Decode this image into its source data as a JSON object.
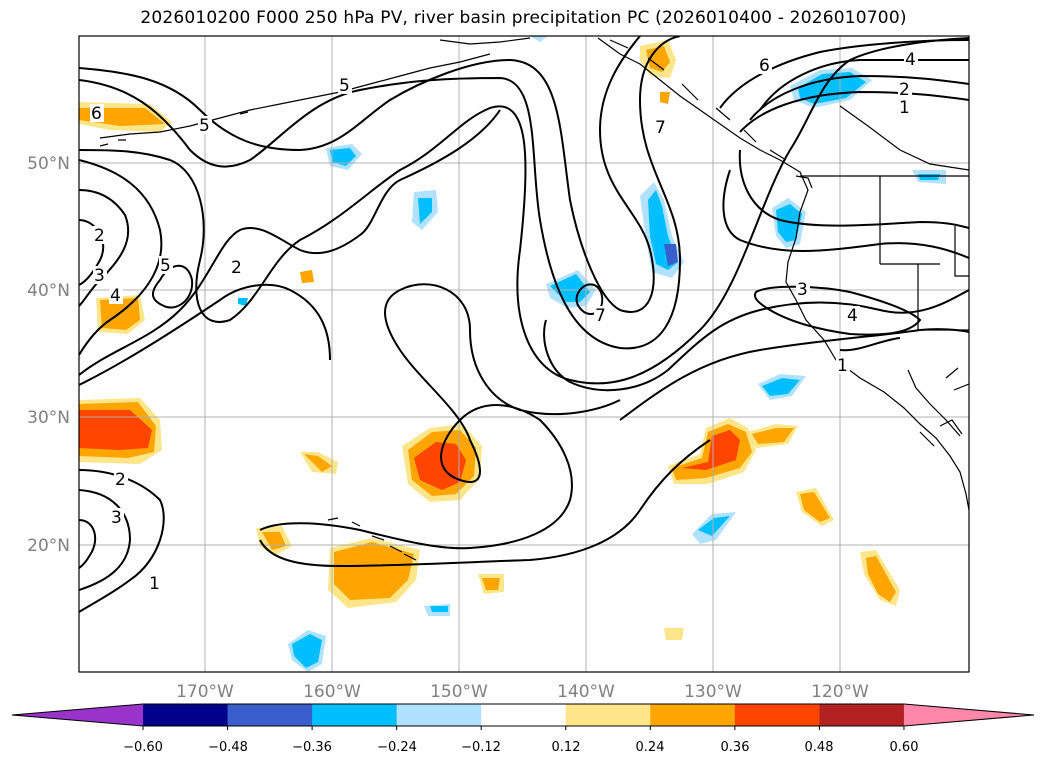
{
  "title": "2026010200 F000 250 hPa PV, river basin precipitation PC (2026010400 - 2026010700)",
  "axes": {
    "lat_labels": [
      "50°N",
      "40°N",
      "30°N",
      "20°N"
    ],
    "lon_labels": [
      "170°W",
      "160°W",
      "150°W",
      "140°W",
      "130°W",
      "120°W"
    ]
  },
  "colorbar": {
    "colors": [
      "#9933cc",
      "#00008b",
      "#3a5fcd",
      "#00bfff",
      "#b0e2ff",
      "#ffffff",
      "#fde68a",
      "#ffa500",
      "#ff4500",
      "#b22222",
      "#ff88aa"
    ],
    "tick_labels": [
      "−0.60",
      "−0.48",
      "−0.36",
      "−0.24",
      "−0.12",
      "0.12",
      "0.24",
      "0.36",
      "0.48",
      "0.60"
    ]
  },
  "contour_labels": [
    "6",
    "5",
    "2",
    "3",
    "4",
    "5",
    "2",
    "5",
    "7",
    "7",
    "6",
    "4",
    "2",
    "1",
    "3",
    "4",
    "1",
    "2",
    "3",
    "1"
  ],
  "colors": {
    "contour": "#000000",
    "grid": "#b0b0b0",
    "coast": "#000000"
  }
}
